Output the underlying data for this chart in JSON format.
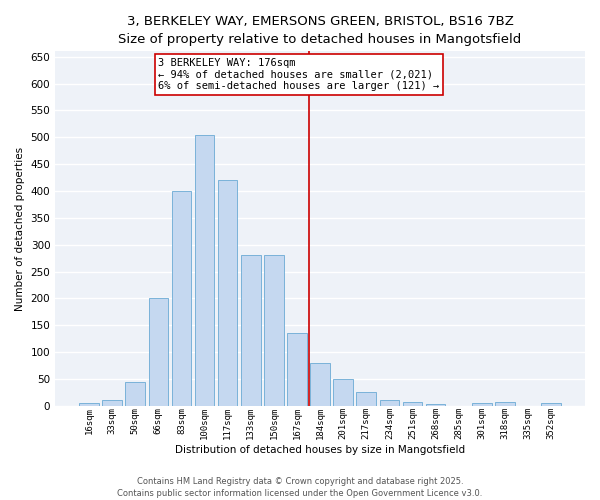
{
  "title1": "3, BERKELEY WAY, EMERSONS GREEN, BRISTOL, BS16 7BZ",
  "title2": "Size of property relative to detached houses in Mangotsfield",
  "xlabel": "Distribution of detached houses by size in Mangotsfield",
  "ylabel": "Number of detached properties",
  "bar_labels": [
    "16sqm",
    "33sqm",
    "50sqm",
    "66sqm",
    "83sqm",
    "100sqm",
    "117sqm",
    "133sqm",
    "150sqm",
    "167sqm",
    "184sqm",
    "201sqm",
    "217sqm",
    "234sqm",
    "251sqm",
    "268sqm",
    "285sqm",
    "301sqm",
    "318sqm",
    "335sqm",
    "352sqm"
  ],
  "bar_heights": [
    5,
    10,
    45,
    200,
    400,
    505,
    420,
    280,
    280,
    135,
    80,
    50,
    25,
    10,
    8,
    3,
    0,
    5,
    8,
    0,
    5
  ],
  "bar_color": "#c5d8f0",
  "bar_edge_color": "#6aaad4",
  "vline_color": "#cc0000",
  "annotation_text": "3 BERKELEY WAY: 176sqm\n← 94% of detached houses are smaller (2,021)\n6% of semi-detached houses are larger (121) →",
  "annotation_box_color": "white",
  "annotation_box_edge_color": "#cc0000",
  "ylim": [
    0,
    660
  ],
  "yticks": [
    0,
    50,
    100,
    150,
    200,
    250,
    300,
    350,
    400,
    450,
    500,
    550,
    600,
    650
  ],
  "background_color": "#eef2f8",
  "grid_color": "white",
  "footer_text": "Contains HM Land Registry data © Crown copyright and database right 2025.\nContains public sector information licensed under the Open Government Licence v3.0.",
  "title_fontsize": 9.5,
  "subtitle_fontsize": 8.5,
  "annotation_fontsize": 7.5,
  "footer_fontsize": 6,
  "ylabel_fontsize": 7.5,
  "xlabel_fontsize": 7.5
}
